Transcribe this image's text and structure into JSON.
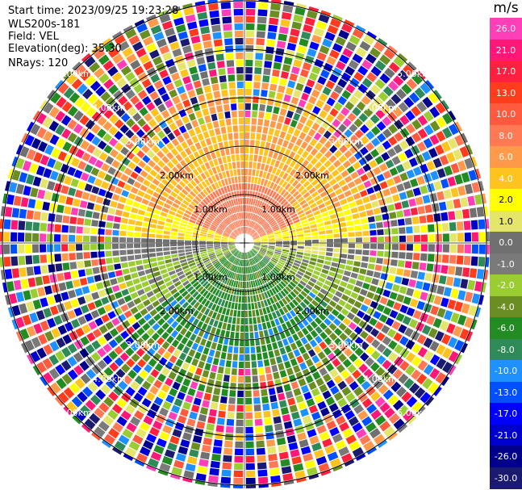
{
  "info": {
    "start_time": "Start time: 2023/09/25 19:23:28",
    "instrument": "WLS200s-181",
    "field": "Field: VEL",
    "elevation": "Elevation(deg): 35.30",
    "nrays": "NRays: 120"
  },
  "range_rings": [
    {
      "km": 1,
      "label": "1.00km"
    },
    {
      "km": 2,
      "label": "2.00km"
    },
    {
      "km": 3,
      "label": "3.00km"
    },
    {
      "km": 4,
      "label": "4.00km"
    },
    {
      "km": 5,
      "label": "5.00km"
    }
  ],
  "colorbar": {
    "unit": "m/s",
    "ticks": [
      "26.0",
      "21.0",
      "17.0",
      "13.0",
      "10.0",
      "8.0",
      "6.0",
      "4.0",
      "2.0",
      "1.0",
      "0.0",
      "-1.0",
      "-2.0",
      "-4.0",
      "-6.0",
      "-8.0",
      "-10.0",
      "-13.0",
      "-17.0",
      "-21.0",
      "-26.0",
      "-30.0"
    ],
    "colors": [
      "#ff3fb8",
      "#ff1877",
      "#ff1f3f",
      "#ff3d1d",
      "#ff5a3e",
      "#ff7a54",
      "#ff9a4a",
      "#ffc31f",
      "#ffff00",
      "#e5e56a",
      "#707070",
      "#7a7a7a",
      "#9acd32",
      "#6b8e23",
      "#228b22",
      "#2e8b57",
      "#1e90ff",
      "#0050ff",
      "#0000ff",
      "#0000cd",
      "#00008b",
      "#1a1a70"
    ]
  }
}
